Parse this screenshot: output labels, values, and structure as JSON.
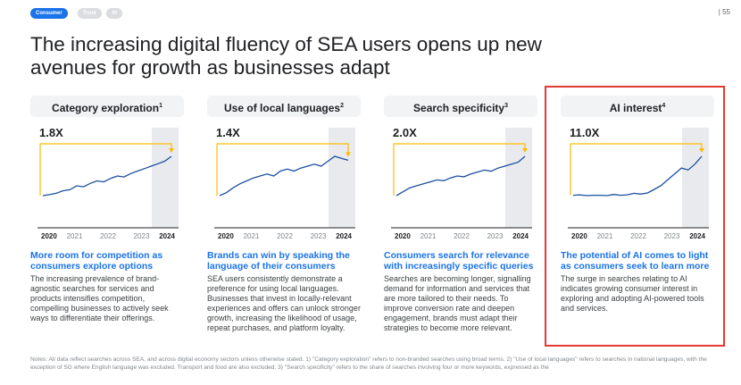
{
  "tags": [
    "Consumer",
    "Trust",
    "AI"
  ],
  "page_number": "| 55",
  "title": "The increasing digital fluency of SEA users opens up new avenues for growth as businesses adapt",
  "panels": [
    {
      "header": "Category exploration",
      "note": "1",
      "multiplier": "1.8X",
      "years": [
        "2020",
        "2021",
        "2022",
        "2023",
        "2024"
      ],
      "values": [
        1.0,
        1.02,
        1.05,
        1.1,
        1.12,
        1.2,
        1.18,
        1.25,
        1.3,
        1.28,
        1.35,
        1.4,
        1.38,
        1.45,
        1.5,
        1.55,
        1.6,
        1.65,
        1.7,
        1.8
      ],
      "heading": "More room for competition as consumers explore options",
      "body": "The increasing prevalence of brand-agnostic searches for services and products intensifies competition, compelling businesses to actively seek ways to differentiate their offerings."
    },
    {
      "header": "Use of local languages",
      "note": "2",
      "multiplier": "1.4X",
      "years": [
        "2020",
        "2021",
        "2022",
        "2023",
        "2024"
      ],
      "values": [
        1.0,
        1.03,
        1.08,
        1.12,
        1.15,
        1.18,
        1.2,
        1.22,
        1.2,
        1.25,
        1.27,
        1.25,
        1.28,
        1.3,
        1.32,
        1.3,
        1.35,
        1.4,
        1.38,
        1.36
      ],
      "heading": "Brands can win by speaking the language of their consumers",
      "body": "SEA users consistently demonstrate a preference for using local languages. Businesses that invest in locally-relevant experiences and offers can unlock stronger growth, increasing the likelihood of usage, repeat purchases, and platform loyalty."
    },
    {
      "header": "Search specificity",
      "note": "3",
      "multiplier": "2.0X",
      "years": [
        "2020",
        "2021",
        "2022",
        "2023",
        "2024"
      ],
      "values": [
        1.0,
        1.1,
        1.2,
        1.25,
        1.3,
        1.35,
        1.4,
        1.38,
        1.45,
        1.5,
        1.48,
        1.55,
        1.6,
        1.65,
        1.62,
        1.7,
        1.75,
        1.8,
        1.85,
        2.0
      ],
      "heading": "Consumers search for relevance with increasingly specific queries",
      "body": "Searches are becoming longer, signalling demand for information and services that are more tailored to their needs. To improve conversion rate and deepen engagement, brands must adapt their strategies to become more relevant."
    },
    {
      "header": "AI interest",
      "note": "4",
      "multiplier": "11.0X",
      "years": [
        "2020",
        "2021",
        "2022",
        "2023",
        "2024"
      ],
      "values": [
        1.0,
        1.1,
        0.9,
        1.0,
        1.0,
        0.9,
        1.2,
        1.0,
        1.1,
        1.5,
        1.3,
        1.6,
        2.5,
        3.5,
        5,
        6.5,
        8,
        7.5,
        9,
        11
      ],
      "heading": "The potential of AI comes to light as consumers seek to learn more",
      "body": "The surge in searches relating to AI indicates growing consumer interest in exploring and adopting AI-powered tools and services."
    }
  ],
  "notes": "Notes: All data reflect searches across SEA, and across digital economy sectors unless otherwise stated. 1) \"Category exploration\" refers to non-branded searches using broad terms. 2) \"Use of local languages\" refers to searches in national languages, with the exception of SG where English language was excluded. Transport and food are also excluded. 3) \"Search specificity\" refers to the share of searches involving four or more keywords, expressed as the"
}
